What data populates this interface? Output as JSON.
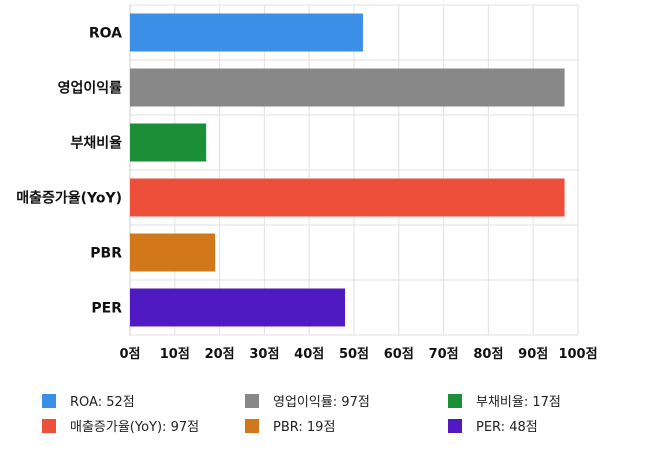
{
  "chart_data": {
    "type": "bar",
    "orientation": "horizontal",
    "categories": [
      "ROA",
      "영업이익률",
      "부채비율",
      "매출증가율(YoY)",
      "PBR",
      "PER"
    ],
    "values": [
      52,
      97,
      17,
      97,
      19,
      48
    ],
    "colors": [
      "#3b8fe6",
      "#888888",
      "#1a8f35",
      "#ee4f3b",
      "#d0781a",
      "#4f1ac2"
    ],
    "xlim": [
      0,
      100
    ],
    "xticks": [
      "0점",
      "10점",
      "20점",
      "30점",
      "40점",
      "50점",
      "60점",
      "70점",
      "80점",
      "90점",
      "100점"
    ],
    "grid": true,
    "legend_position": "bottom",
    "legend": [
      "ROA: 52점",
      "영업이익률: 97점",
      "부채비율: 17점",
      "매출증가율(YoY): 97점",
      "PBR: 19점",
      "PER: 48점"
    ]
  }
}
